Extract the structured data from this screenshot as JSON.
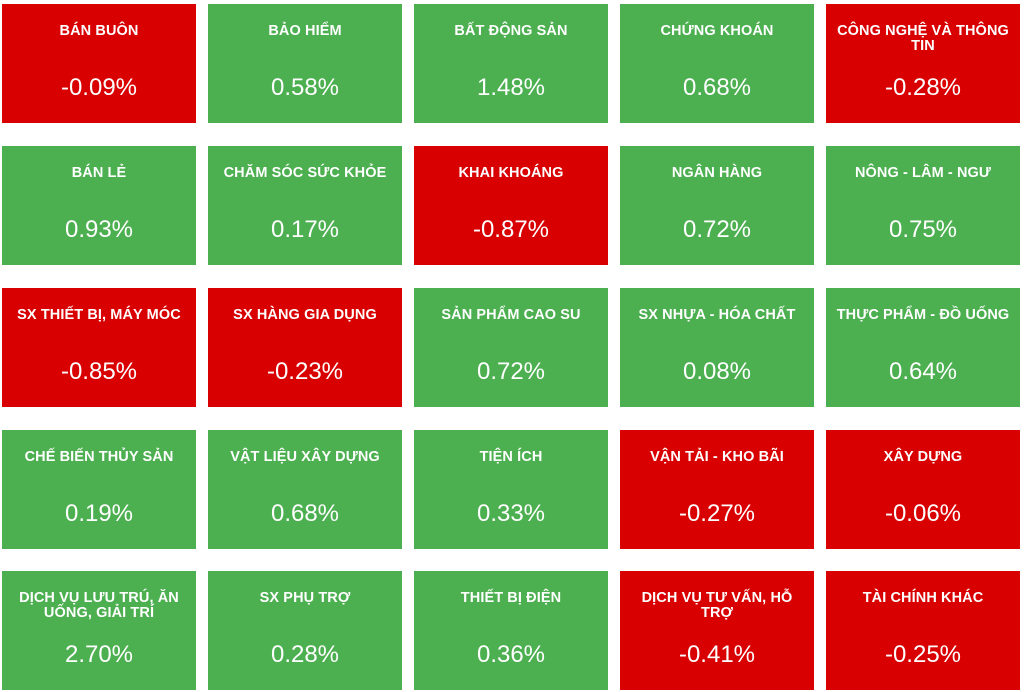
{
  "colors": {
    "up": "#4caf50",
    "down": "#d80000",
    "text": "#ffffff"
  },
  "tiles": [
    {
      "name": "BÁN BUÔN",
      "value": "-0.09%",
      "trend": "down"
    },
    {
      "name": "BẢO HIỂM",
      "value": "0.58%",
      "trend": "up"
    },
    {
      "name": "BẤT ĐỘNG SẢN",
      "value": "1.48%",
      "trend": "up"
    },
    {
      "name": "CHỨNG KHOÁN",
      "value": "0.68%",
      "trend": "up"
    },
    {
      "name": "CÔNG NGHỆ VÀ THÔNG TIN",
      "value": "-0.28%",
      "trend": "down"
    },
    {
      "name": "BÁN LẺ",
      "value": "0.93%",
      "trend": "up"
    },
    {
      "name": "CHĂM SÓC SỨC KHỎE",
      "value": "0.17%",
      "trend": "up"
    },
    {
      "name": "KHAI KHOÁNG",
      "value": "-0.87%",
      "trend": "down"
    },
    {
      "name": "NGÂN HÀNG",
      "value": "0.72%",
      "trend": "up"
    },
    {
      "name": "NÔNG - LÂM - NGƯ",
      "value": "0.75%",
      "trend": "up"
    },
    {
      "name": "SX THIẾT BỊ, MÁY MÓC",
      "value": "-0.85%",
      "trend": "down"
    },
    {
      "name": "SX HÀNG GIA DỤNG",
      "value": "-0.23%",
      "trend": "down"
    },
    {
      "name": "SẢN PHẨM CAO SU",
      "value": "0.72%",
      "trend": "up"
    },
    {
      "name": "SX NHỰA - HÓA CHẤT",
      "value": "0.08%",
      "trend": "up"
    },
    {
      "name": "THỰC PHẨM - ĐỒ UỐNG",
      "value": "0.64%",
      "trend": "up"
    },
    {
      "name": "CHẾ BIẾN THỦY SẢN",
      "value": "0.19%",
      "trend": "up"
    },
    {
      "name": "VẬT LIỆU XÂY DỰNG",
      "value": "0.68%",
      "trend": "up"
    },
    {
      "name": "TIỆN ÍCH",
      "value": "0.33%",
      "trend": "up"
    },
    {
      "name": "VẬN TẢI - KHO BÃI",
      "value": "-0.27%",
      "trend": "down"
    },
    {
      "name": "XÂY DỰNG",
      "value": "-0.06%",
      "trend": "down"
    },
    {
      "name": "DỊCH VỤ LƯU TRÚ, ĂN UỐNG, GIẢI TRÍ",
      "value": "2.70%",
      "trend": "up"
    },
    {
      "name": "SX PHỤ TRỢ",
      "value": "0.28%",
      "trend": "up"
    },
    {
      "name": "THIẾT BỊ ĐIỆN",
      "value": "0.36%",
      "trend": "up"
    },
    {
      "name": "DỊCH VỤ TƯ VẤN, HỖ TRỢ",
      "value": "-0.41%",
      "trend": "down"
    },
    {
      "name": "TÀI CHÍNH KHÁC",
      "value": "-0.25%",
      "trend": "down"
    }
  ]
}
